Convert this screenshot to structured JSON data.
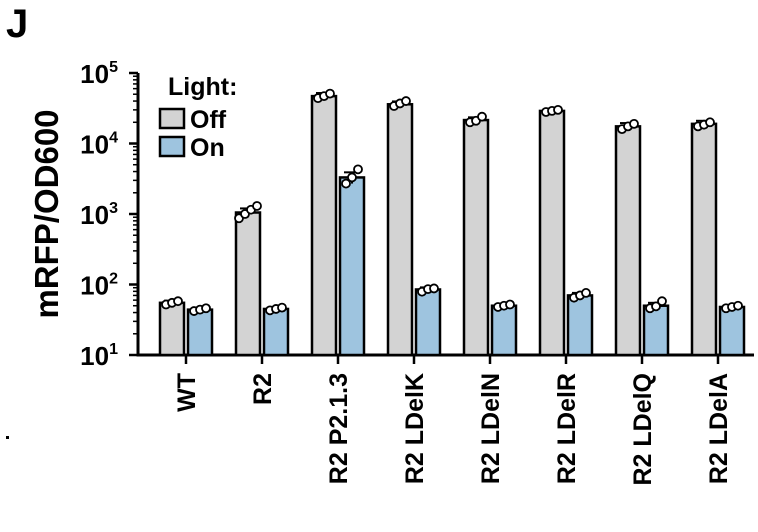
{
  "panel_label": "J",
  "chart_data": {
    "type": "bar",
    "ylabel": "mRFP/OD600",
    "xlabel": "",
    "yscale": "log",
    "ylim": [
      10,
      100000
    ],
    "yticks": [
      {
        "value": 10,
        "base": "10",
        "exp": "1"
      },
      {
        "value": 100,
        "base": "10",
        "exp": "2"
      },
      {
        "value": 1000,
        "base": "10",
        "exp": "3"
      },
      {
        "value": 10000,
        "base": "10",
        "exp": "4"
      },
      {
        "value": 100000,
        "base": "10",
        "exp": "5"
      }
    ],
    "legend": {
      "title": "Light:",
      "position": "top-left"
    },
    "categories": [
      "WT",
      "R2",
      "R2 P2.1.3",
      "R2 LDelK",
      "R2 LDelN",
      "R2 LDelR",
      "R2 LDelQ",
      "R2 LDelA"
    ],
    "series": [
      {
        "name": "Off",
        "color": "#d3d3d3",
        "values": [
          55,
          1050,
          47000,
          36000,
          21500,
          29000,
          17500,
          19000
        ],
        "error": [
          4,
          150,
          5000,
          3500,
          2000,
          2000,
          2000,
          2000
        ],
        "replicates": [
          [
            52,
            55,
            58
          ],
          [
            870,
            1000,
            1150,
            1300
          ],
          [
            44000,
            47000,
            51000
          ],
          [
            34000,
            37000,
            40000
          ],
          [
            20000,
            21000,
            24000
          ],
          [
            28000,
            29000,
            30000
          ],
          [
            16000,
            17500,
            19000
          ],
          [
            17500,
            18500,
            20000
          ]
        ]
      },
      {
        "name": "On",
        "color": "#9ec4df",
        "values": [
          44,
          45,
          3300,
          85,
          50,
          70,
          50,
          48
        ],
        "error": [
          3,
          3,
          600,
          6,
          3,
          6,
          5,
          3
        ],
        "replicates": [
          [
            42,
            44,
            46
          ],
          [
            43,
            45,
            47
          ],
          [
            2700,
            3300,
            4300
          ],
          [
            79,
            86,
            88
          ],
          [
            48,
            50,
            52
          ],
          [
            65,
            70,
            76
          ],
          [
            46,
            49,
            58
          ],
          [
            46,
            48,
            50
          ]
        ]
      }
    ]
  }
}
